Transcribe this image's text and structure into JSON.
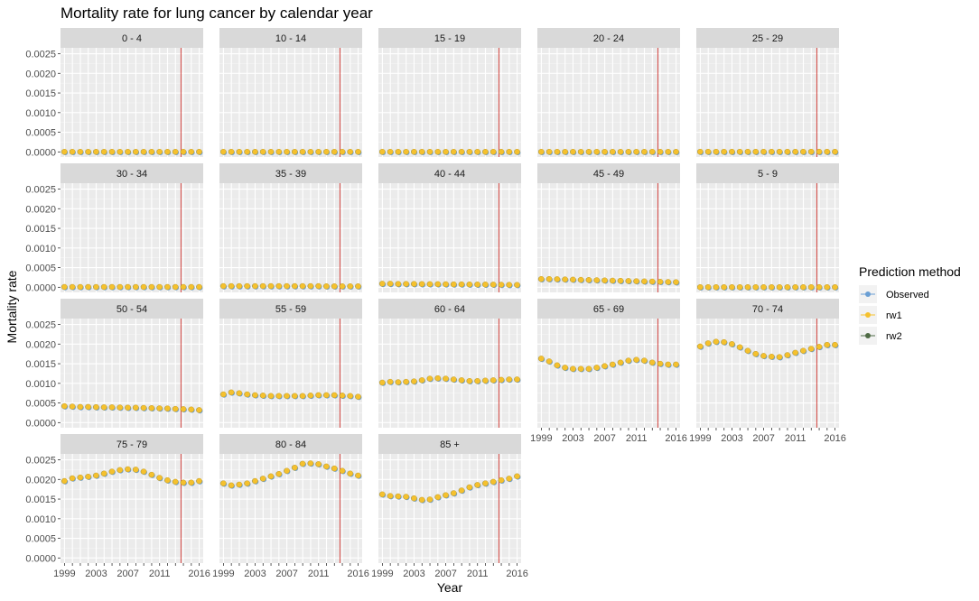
{
  "chart_data": {
    "type": "scatter",
    "title": "Mortality rate for lung cancer by calendar year",
    "xlabel": "Year",
    "ylabel": "Mortality rate",
    "x_ticks": [
      "1999",
      "2003",
      "2007",
      "2011",
      "2016"
    ],
    "y_ticks": [
      "0.0000",
      "0.0005",
      "0.0010",
      "0.0015",
      "0.0020",
      "0.0025"
    ],
    "xlim": [
      1998.5,
      2016.5
    ],
    "ylim": [
      -0.00013,
      0.00265
    ],
    "years": [
      1999,
      2000,
      2001,
      2002,
      2003,
      2004,
      2005,
      2006,
      2007,
      2008,
      2009,
      2010,
      2011,
      2012,
      2013,
      2014,
      2015,
      2016
    ],
    "vline_year": 2013.7,
    "vline_color": "#d44842",
    "grid": true,
    "legend": {
      "title": "Prediction method",
      "position": "right",
      "entries": [
        {
          "name": "Observed",
          "color": "#6a9fd4"
        },
        {
          "name": "rw1",
          "color": "#f5c12e"
        },
        {
          "name": "rw2",
          "color": "#4f6b45"
        }
      ]
    },
    "panels": [
      {
        "label": "0 - 4",
        "values": [
          3e-06,
          3e-06,
          3e-06,
          3e-06,
          3e-06,
          3e-06,
          3e-06,
          3e-06,
          3e-06,
          3e-06,
          3e-06,
          3e-06,
          3e-06,
          3e-06,
          3e-06,
          3e-06,
          3e-06,
          3e-06
        ]
      },
      {
        "label": "10 - 14",
        "values": [
          3e-06,
          3e-06,
          3e-06,
          3e-06,
          3e-06,
          3e-06,
          3e-06,
          3e-06,
          3e-06,
          3e-06,
          3e-06,
          3e-06,
          3e-06,
          3e-06,
          3e-06,
          3e-06,
          3e-06,
          3e-06
        ]
      },
      {
        "label": "15 - 19",
        "values": [
          3e-06,
          3e-06,
          3e-06,
          3e-06,
          3e-06,
          3e-06,
          3e-06,
          3e-06,
          3e-06,
          3e-06,
          3e-06,
          3e-06,
          3e-06,
          3e-06,
          3e-06,
          3e-06,
          3e-06,
          3e-06
        ]
      },
      {
        "label": "20 - 24",
        "values": [
          3e-06,
          3e-06,
          3e-06,
          3e-06,
          3e-06,
          3e-06,
          3e-06,
          3e-06,
          3e-06,
          3e-06,
          3e-06,
          3e-06,
          3e-06,
          3e-06,
          3e-06,
          3e-06,
          3e-06,
          3e-06
        ]
      },
      {
        "label": "25 - 29",
        "values": [
          4e-06,
          4e-06,
          4e-06,
          4e-06,
          4e-06,
          4e-06,
          4e-06,
          4e-06,
          4e-06,
          4e-06,
          4e-06,
          4e-06,
          4e-06,
          4e-06,
          4e-06,
          4e-06,
          4e-06,
          4e-06
        ]
      },
      {
        "label": "30 - 34",
        "values": [
          8e-06,
          8e-06,
          8e-06,
          8e-06,
          8e-06,
          8e-06,
          8e-06,
          8e-06,
          8e-06,
          8e-06,
          8e-06,
          8e-06,
          8e-06,
          8e-06,
          8e-06,
          8e-06,
          8e-06,
          8e-06
        ]
      },
      {
        "label": "35 - 39",
        "values": [
          3e-05,
          3e-05,
          3e-05,
          3e-05,
          3e-05,
          3e-05,
          3e-05,
          3e-05,
          3e-05,
          3e-05,
          3e-05,
          3e-05,
          3e-05,
          2.5e-05,
          2.5e-05,
          2.5e-05,
          2.5e-05,
          2.5e-05
        ]
      },
      {
        "label": "40 - 44",
        "values": [
          9e-05,
          9e-05,
          8.5e-05,
          8.5e-05,
          8.5e-05,
          8.2e-05,
          8e-05,
          8e-05,
          7.8e-05,
          7.5e-05,
          7.5e-05,
          7.2e-05,
          7e-05,
          7e-05,
          6.8e-05,
          6.5e-05,
          6.2e-05,
          6e-05
        ]
      },
      {
        "label": "45 - 49",
        "values": [
          0.00021,
          0.00021,
          0.000205,
          0.0002,
          0.000195,
          0.00019,
          0.000185,
          0.00018,
          0.000175,
          0.00017,
          0.000165,
          0.00016,
          0.000155,
          0.00015,
          0.000145,
          0.00014,
          0.000135,
          0.00013
        ]
      },
      {
        "label": "5 - 9",
        "values": [
          3e-06,
          3e-06,
          3e-06,
          3e-06,
          3e-06,
          3e-06,
          3e-06,
          3e-06,
          3e-06,
          3e-06,
          3e-06,
          3e-06,
          3e-06,
          3e-06,
          3e-06,
          3e-06,
          3e-06,
          3e-06
        ]
      },
      {
        "label": "50 - 54",
        "values": [
          0.00042,
          0.00041,
          0.0004,
          0.0004,
          0.000395,
          0.00039,
          0.00039,
          0.000385,
          0.00038,
          0.00038,
          0.000375,
          0.00037,
          0.000365,
          0.00036,
          0.00035,
          0.000345,
          0.000335,
          0.00032
        ]
      },
      {
        "label": "55 - 59",
        "values": [
          0.00072,
          0.00077,
          0.00075,
          0.00072,
          0.0007,
          0.00069,
          0.00068,
          0.00068,
          0.00068,
          0.00068,
          0.00068,
          0.00069,
          0.0007,
          0.0007,
          0.0007,
          0.00069,
          0.00068,
          0.00066
        ]
      },
      {
        "label": "60 - 64",
        "values": [
          0.00102,
          0.00104,
          0.00103,
          0.00104,
          0.00105,
          0.00108,
          0.00112,
          0.00113,
          0.00112,
          0.0011,
          0.00108,
          0.00106,
          0.00106,
          0.00107,
          0.00108,
          0.00109,
          0.0011,
          0.0011
        ]
      },
      {
        "label": "65 - 69",
        "values": [
          0.00163,
          0.00156,
          0.00146,
          0.0014,
          0.00137,
          0.00137,
          0.00137,
          0.0014,
          0.00144,
          0.00148,
          0.00153,
          0.00158,
          0.0016,
          0.00158,
          0.00153,
          0.0015,
          0.00148,
          0.00148
        ]
      },
      {
        "label": "70 - 74",
        "values": [
          0.00194,
          0.00202,
          0.00206,
          0.00205,
          0.002,
          0.00192,
          0.00183,
          0.00175,
          0.0017,
          0.00168,
          0.00167,
          0.00172,
          0.00178,
          0.00183,
          0.00188,
          0.00193,
          0.00198,
          0.00198
        ]
      },
      {
        "label": "75 - 79",
        "values": [
          0.00196,
          0.00203,
          0.00205,
          0.00207,
          0.0021,
          0.00215,
          0.0022,
          0.00224,
          0.00226,
          0.00225,
          0.0022,
          0.00212,
          0.00204,
          0.00198,
          0.00194,
          0.00192,
          0.00192,
          0.00196
        ]
      },
      {
        "label": "80 - 84",
        "values": [
          0.0019,
          0.00185,
          0.00187,
          0.0019,
          0.00196,
          0.00202,
          0.00208,
          0.00214,
          0.00222,
          0.0023,
          0.0024,
          0.00241,
          0.00239,
          0.00233,
          0.00228,
          0.00222,
          0.00215,
          0.0021
        ]
      },
      {
        "label": "85 +",
        "values": [
          0.00162,
          0.00158,
          0.00157,
          0.00156,
          0.00152,
          0.00148,
          0.00149,
          0.00155,
          0.0016,
          0.00165,
          0.00172,
          0.0018,
          0.00186,
          0.0019,
          0.00194,
          0.00198,
          0.00202,
          0.00208
        ]
      }
    ]
  }
}
